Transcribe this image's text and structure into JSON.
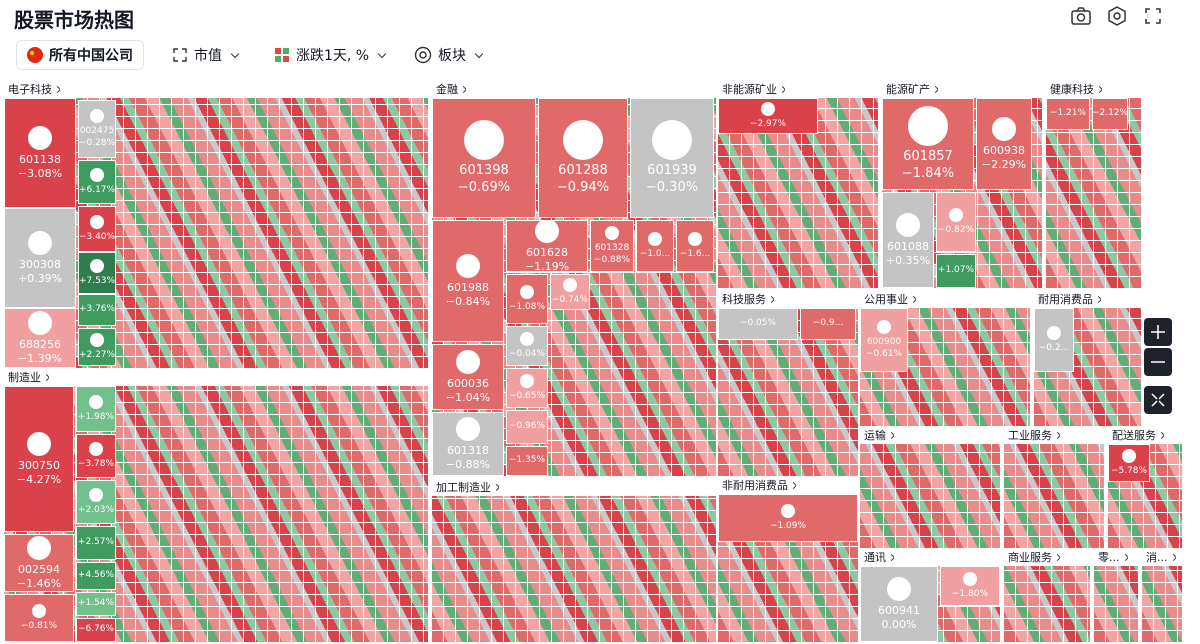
{
  "header": {
    "title": "股票市场热图"
  },
  "toolbar": {
    "market": "所有中国公司",
    "size": "市值",
    "change": "涨跌1天, %",
    "group": "板块"
  },
  "sectors": [
    {
      "name": "电子科技",
      "tiles": [
        {
          "code": "601138",
          "change": "−3.08%"
        },
        {
          "code": "300308",
          "change": "+0.39%"
        },
        {
          "code": "688256",
          "change": "−1.39%"
        },
        {
          "code": "002475",
          "change": "−0.28%"
        },
        {
          "change": "+6.17%"
        },
        {
          "change": "−3.40%"
        },
        {
          "change": "+7.53%"
        },
        {
          "change": "+3.76%"
        },
        {
          "change": "+2.27%"
        }
      ]
    },
    {
      "name": "制造业",
      "tiles": [
        {
          "code": "300750",
          "change": "−4.27%"
        },
        {
          "code": "002594",
          "change": "−1.46%"
        },
        {
          "change": "−0.81%"
        },
        {
          "change": "+1.98%"
        },
        {
          "change": "−3.78%"
        },
        {
          "change": "+2.03%"
        },
        {
          "change": "+2.57%"
        },
        {
          "change": "+4.56%"
        },
        {
          "change": "+1.54%"
        },
        {
          "change": "−6.76%"
        }
      ]
    },
    {
      "name": "金融",
      "tiles": [
        {
          "code": "601398",
          "change": "−0.69%"
        },
        {
          "code": "601288",
          "change": "−0.94%"
        },
        {
          "code": "601939",
          "change": "−0.30%"
        },
        {
          "code": "601988",
          "change": "−0.84%"
        },
        {
          "code": "600036",
          "change": "−1.04%"
        },
        {
          "code": "601318",
          "change": "−0.88%"
        },
        {
          "code": "601628",
          "change": "−1.19%"
        },
        {
          "code": "601328",
          "change": "−0.88%"
        },
        {
          "change": "−1.0..."
        },
        {
          "change": "−1.6..."
        },
        {
          "change": "−1.08%"
        },
        {
          "change": "−0.74%"
        },
        {
          "change": "−0.04%"
        },
        {
          "change": "−0.65%"
        },
        {
          "change": "−0.96%"
        },
        {
          "change": "−1.35%"
        }
      ]
    },
    {
      "name": "加工制造业",
      "tiles": []
    },
    {
      "name": "非能源矿业",
      "tiles": [
        {
          "change": "−2.97%"
        }
      ]
    },
    {
      "name": "能源矿产",
      "tiles": [
        {
          "code": "601857",
          "change": "−1.84%"
        },
        {
          "code": "600938",
          "change": "−2.29%"
        },
        {
          "code": "601088",
          "change": "+0.35%"
        },
        {
          "change": "−0.82%"
        },
        {
          "change": "+1.07%"
        }
      ]
    },
    {
      "name": "健康科技",
      "tiles": [
        {
          "change": "−1.21%"
        },
        {
          "change": "−2.12%"
        }
      ]
    },
    {
      "name": "科技服务",
      "tiles": [
        {
          "change": "−0.05%"
        },
        {
          "change": "−0.9..."
        }
      ]
    },
    {
      "name": "公用事业",
      "tiles": [
        {
          "code": "600900",
          "change": "−0.61%"
        }
      ]
    },
    {
      "name": "耐用消费品",
      "tiles": [
        {
          "change": "−0.2..."
        }
      ]
    },
    {
      "name": "运输",
      "tiles": []
    },
    {
      "name": "工业服务",
      "tiles": []
    },
    {
      "name": "配送服务",
      "tiles": [
        {
          "change": "−5.78%"
        }
      ]
    },
    {
      "name": "非耐用消费品",
      "tiles": [
        {
          "change": "−1.09%"
        }
      ]
    },
    {
      "name": "通讯",
      "tiles": [
        {
          "code": "600941",
          "change": "0.00%"
        },
        {
          "change": "−1.80%"
        }
      ]
    },
    {
      "name": "商业服务",
      "tiles": []
    },
    {
      "name": "零...",
      "tiles": []
    },
    {
      "name": "消...",
      "tiles": []
    }
  ]
}
